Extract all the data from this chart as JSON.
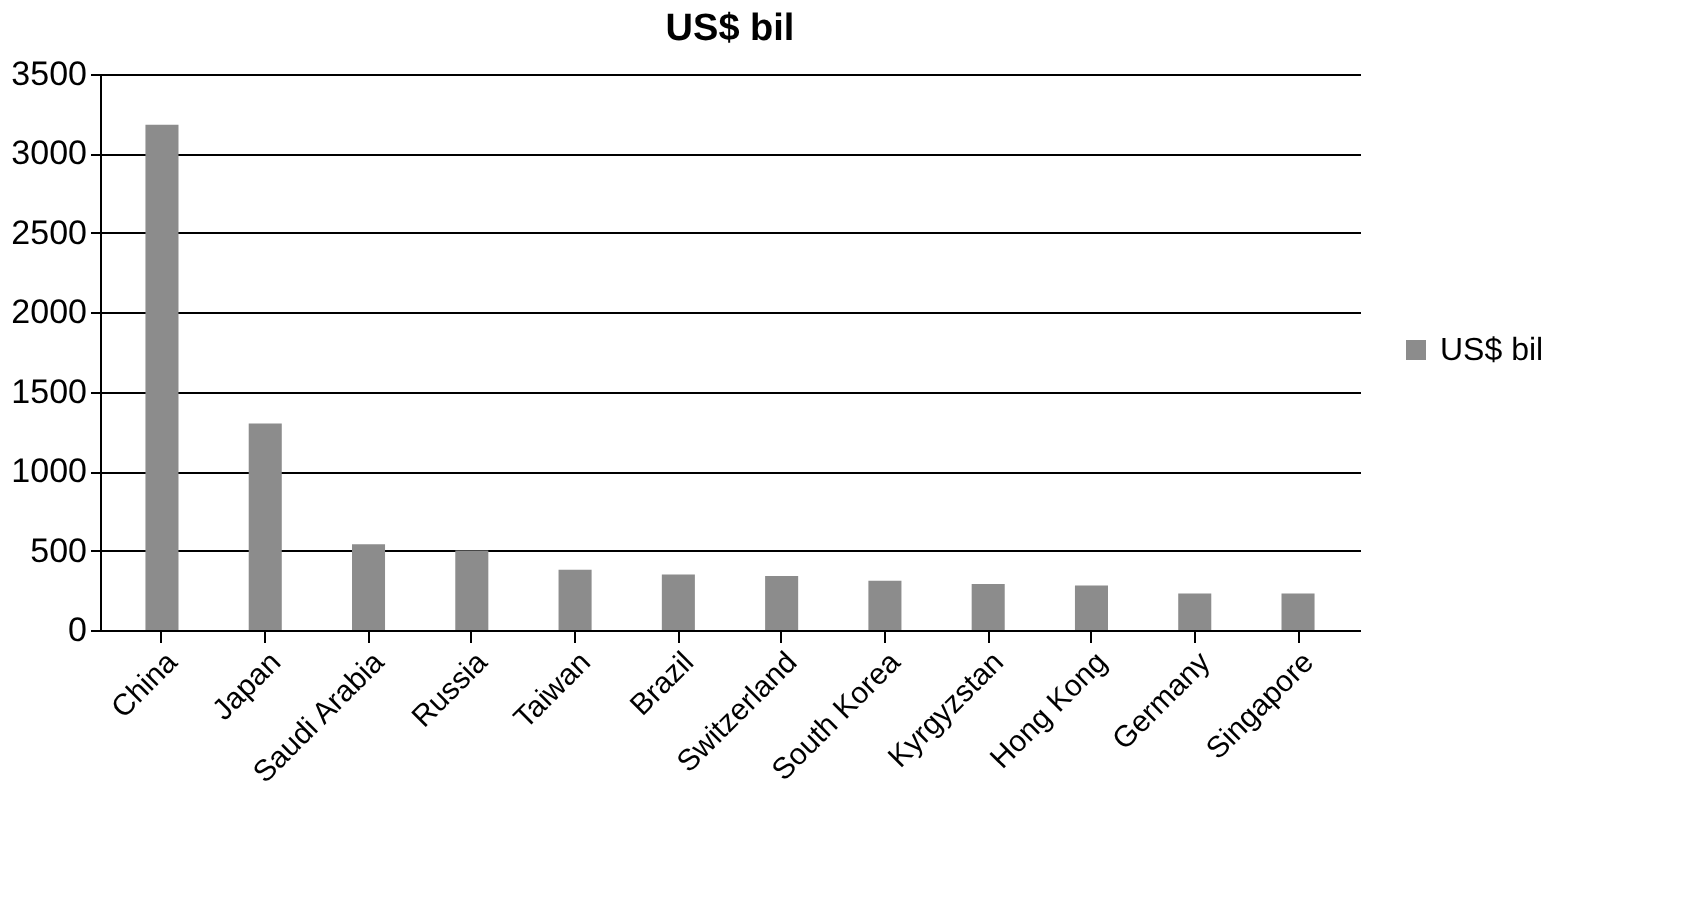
{
  "chart_data": {
    "type": "bar",
    "title": "US$ bil",
    "categories": [
      "China",
      "Japan",
      "Saudi Arabia",
      "Russia",
      "Taiwan",
      "Brazil",
      "Switzerland",
      "South Korea",
      "Kyrgyzstan",
      "Hong Kong",
      "Germany",
      "Singapore"
    ],
    "series": [
      {
        "name": "US$ bil",
        "color": "#8c8c8c",
        "values": [
          3180,
          1300,
          540,
          500,
          380,
          350,
          340,
          310,
          290,
          280,
          230,
          230
        ]
      }
    ],
    "ylim": [
      0,
      3500
    ],
    "yticks": [
      0,
      500,
      1000,
      1500,
      2000,
      2500,
      3000,
      3500
    ],
    "grid": "y",
    "legend": "right"
  }
}
